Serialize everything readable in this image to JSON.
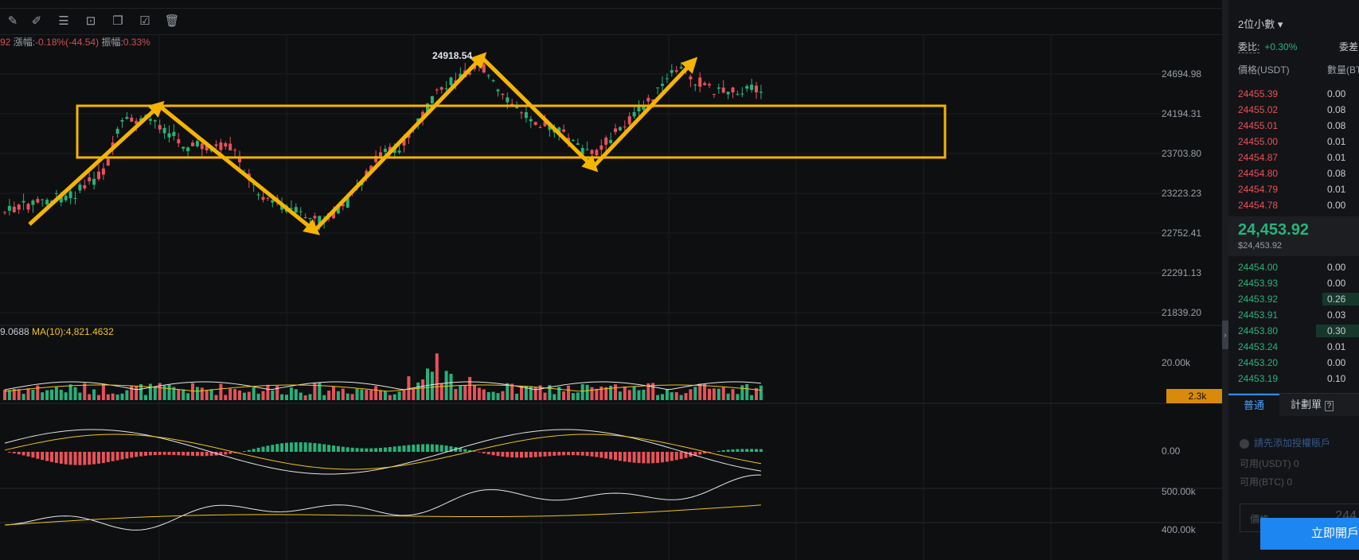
{
  "toolbar": {
    "icons": [
      "ruler-icon",
      "pencil-icon",
      "candlestick-icon",
      "lock-icon",
      "copy-layers-icon",
      "edit-settings-icon",
      "trash-icon"
    ]
  },
  "ohlc_bar": {
    "partial_value": "92",
    "change_label": "漲幅:",
    "change_value": "-0.18%(-44.54)",
    "amplitude_label": "振幅:",
    "amplitude_value": "0.33%"
  },
  "chart_data": {
    "type": "candlestick",
    "price_axis": [
      "24694.98",
      "24194.31",
      "23703.80",
      "23223.23",
      "22752.41",
      "22291.13",
      "21839.20"
    ],
    "high_marker": "24918.54",
    "volume_axis": [
      "20.00k"
    ],
    "volume_current_tag": "2.3k",
    "volume_legend": {
      "partial_value": "9.0688",
      "ma_label": "MA(10):4,821.4632"
    },
    "macd_axis": [
      "0.00"
    ],
    "obv_axis": [
      "500.00k",
      "400.00k"
    ],
    "colors": {
      "up": "#26b37a",
      "down": "#e8525a",
      "annotation": "#f5b400",
      "ma": "#f0c419"
    }
  },
  "orderbook": {
    "decimals": "2位小數",
    "ratio_label": "委比:",
    "ratio_value": "+0.30%",
    "ratio_right_label": "委差",
    "header_price": "價格(USDT)",
    "header_qty": "數量(BT",
    "asks": [
      {
        "price": "24455.39",
        "qty": "0.00"
      },
      {
        "price": "24455.02",
        "qty": "0.08"
      },
      {
        "price": "24455.01",
        "qty": "0.08"
      },
      {
        "price": "24455.00",
        "qty": "0.01"
      },
      {
        "price": "24454.87",
        "qty": "0.01"
      },
      {
        "price": "24454.80",
        "qty": "0.08"
      },
      {
        "price": "24454.79",
        "qty": "0.01"
      },
      {
        "price": "24454.78",
        "qty": "0.00"
      }
    ],
    "last_price": "24,453.92",
    "last_price_usd": "$24,453.92",
    "bids": [
      {
        "price": "24454.00",
        "qty": "0.00"
      },
      {
        "price": "24453.93",
        "qty": "0.00"
      },
      {
        "price": "24453.92",
        "qty": "0.26"
      },
      {
        "price": "24453.91",
        "qty": "0.03"
      },
      {
        "price": "24453.80",
        "qty": "0.30"
      },
      {
        "price": "24453.24",
        "qty": "0.01"
      },
      {
        "price": "24453.20",
        "qty": "0.00"
      },
      {
        "price": "24453.19",
        "qty": "0.10"
      }
    ]
  },
  "order_panel": {
    "tab_normal": "普通",
    "tab_plan": "計劃單",
    "add_account": "請先添加授權賬戶",
    "avail_usdt_label": "可用(USDT)",
    "avail_usdt_value": "0",
    "avail_btc_label": "可用(BTC)",
    "avail_btc_value": "0",
    "price_label": "價格",
    "price_value": "244",
    "open_button": "立即開戶"
  }
}
